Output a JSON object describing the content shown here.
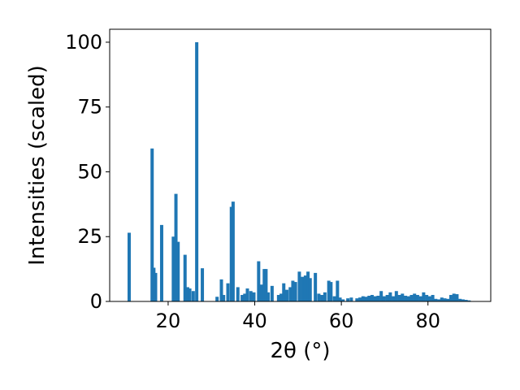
{
  "chart_data": {
    "type": "bar",
    "title": "",
    "xlabel": "2θ (°)",
    "ylabel": "Intensities (scaled)",
    "xlim": [
      6.5,
      94.5
    ],
    "ylim": [
      0,
      105
    ],
    "xticks": [
      20,
      40,
      60,
      80
    ],
    "yticks": [
      0,
      25,
      50,
      75,
      100
    ],
    "x_tick_labels": [
      "20",
      "40",
      "60",
      "80"
    ],
    "y_tick_labels": [
      "0",
      "25",
      "50",
      "75",
      "100"
    ],
    "grid": false,
    "legend": "none",
    "bar_width": 0.75,
    "color": "#1f77b4",
    "x": [
      11.0,
      16.3,
      16.7,
      17.1,
      18.5,
      21.2,
      21.8,
      22.3,
      23.9,
      24.5,
      25.0,
      25.8,
      26.6,
      27.9,
      31.3,
      32.3,
      32.8,
      33.8,
      34.6,
      35.0,
      36.1,
      37.1,
      37.7,
      38.3,
      39.1,
      39.8,
      40.9,
      41.5,
      42.2,
      42.6,
      43.1,
      44.0,
      45.5,
      46.1,
      46.7,
      47.4,
      48.2,
      48.8,
      49.4,
      50.3,
      51.0,
      51.7,
      52.3,
      52.8,
      54.0,
      54.8,
      55.5,
      56.2,
      57.1,
      57.6,
      58.4,
      59.1,
      59.7,
      60.4,
      61.5,
      62.3,
      63.6,
      64.3,
      65.0,
      65.7,
      66.4,
      67.1,
      67.8,
      68.5,
      69.2,
      69.9,
      70.6,
      71.3,
      72.0,
      72.7,
      73.4,
      74.1,
      74.8,
      75.5,
      76.2,
      76.9,
      77.6,
      78.3,
      79.0,
      79.7,
      80.4,
      81.1,
      81.8,
      82.5,
      83.2,
      83.9,
      84.6,
      85.3,
      86.0,
      86.7,
      87.4,
      88.1,
      88.8,
      89.5
    ],
    "values": [
      26.5,
      59.0,
      13.0,
      11.0,
      29.5,
      25.0,
      41.5,
      23.0,
      18.0,
      5.5,
      5.0,
      4.0,
      100.0,
      12.8,
      1.8,
      8.5,
      2.5,
      7.0,
      36.5,
      38.5,
      5.5,
      2.5,
      3.0,
      5.0,
      4.0,
      3.5,
      15.5,
      6.5,
      12.5,
      12.5,
      3.5,
      6.0,
      2.5,
      3.0,
      7.0,
      4.5,
      5.5,
      8.0,
      7.5,
      11.5,
      9.5,
      10.0,
      11.5,
      9.0,
      11.0,
      3.0,
      2.5,
      3.5,
      8.0,
      7.5,
      2.0,
      8.0,
      1.5,
      0.8,
      1.2,
      1.5,
      1.2,
      1.5,
      2.0,
      1.8,
      2.2,
      2.5,
      2.0,
      2.2,
      4.0,
      2.0,
      2.5,
      3.5,
      2.0,
      4.0,
      2.5,
      3.0,
      2.2,
      2.0,
      2.5,
      3.0,
      2.5,
      2.0,
      3.5,
      2.5,
      2.0,
      2.5,
      1.0,
      0.8,
      1.5,
      1.2,
      1.0,
      2.5,
      3.0,
      2.8,
      1.0,
      0.8,
      0.6,
      0.4
    ]
  }
}
